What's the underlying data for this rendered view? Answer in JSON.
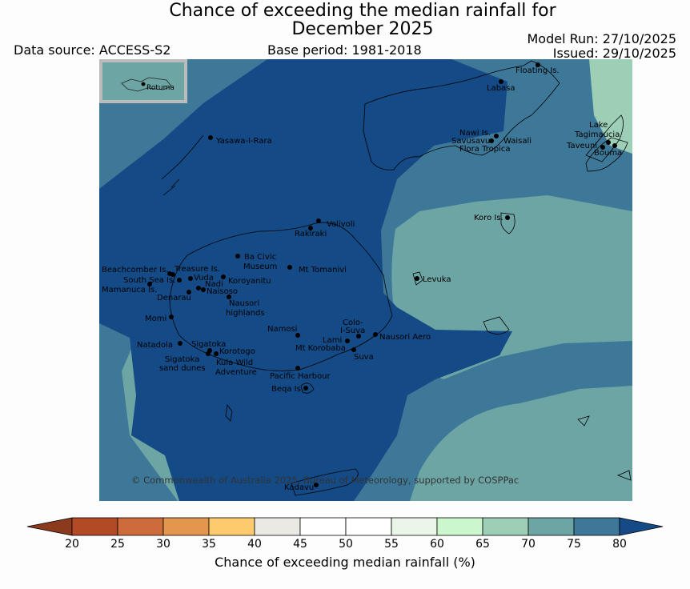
{
  "title_line1": "Chance of exceeding the median rainfall for",
  "title_line2": "December 2025",
  "data_source": "Data source: ACCESS-S2",
  "base_period": "Base period: 1981-2018",
  "model_run": "Model Run: 27/10/2025",
  "issued": "Issued: 29/10/2025",
  "inset_label": "Rotuma",
  "copyright": "© Commonwealth of Australia 2025, Bureau of Meteorology, supported by COSPPac",
  "places": {
    "floating_is": "Floating Is.",
    "labasa": "Labasa",
    "nawi_is": "Nawi Is.",
    "savusavu": "Savusavu",
    "waisali": "Waisali",
    "flora_tropica": "Flora Tropica",
    "lake_tagimaucia_1": "Lake",
    "lake_tagimaucia_2": "Tagimaucia",
    "taveuni": "Taveuni",
    "bouma": "Bouma",
    "yasawa": "Yasawa-I-Rara",
    "koro_is": "Koro Is.",
    "volivoli": "Volivoli",
    "rakiraki": "Rakiraki",
    "ba_civic_1": "Ba Civic",
    "ba_civic_2": "Museum",
    "mt_tomanivi": "Mt Tomanivi",
    "beachcomber": "Beachcomber Is.",
    "treasure": "Treasure Is.",
    "south_sea": "South Sea Is.",
    "vuda": "Vuda",
    "koroyanitu": "Koroyanitu",
    "nadi": "Nadi",
    "mamanuca": "Mamanuca Is.",
    "naisoso": "Naisoso",
    "denarau": "Denarau",
    "nausori_hl_1": "Nausori",
    "nausori_hl_2": "highlands",
    "levuka": "Levuka",
    "momi": "Momi",
    "namosi": "Namosi",
    "colo_1": "Colo-",
    "colo_2": "I-Suva",
    "lami": "Lami",
    "nausori_aero": "Nausori Aero",
    "mt_korobaba": "Mt Korobaba",
    "suva": "Suva",
    "natadola": "Natadola",
    "sigatoka": "Sigatoka",
    "korotogo": "Korotogo",
    "sig_dunes_1": "Sigatoka",
    "sig_dunes_2": "sand dunes",
    "kula_1": "Kula Wild",
    "kula_2": "Adventure",
    "pacific_harbour": "Pacific Harbour",
    "beqa": "Beqa Is.",
    "kadavu": "Kadavu"
  },
  "colorbar": {
    "label": "Chance of exceeding median rainfall (%)",
    "ticks": [
      "20",
      "25",
      "30",
      "35",
      "40",
      "45",
      "50",
      "55",
      "60",
      "65",
      "70",
      "75",
      "80"
    ],
    "under_color": "#8b3a1e",
    "over_color": "#144a86",
    "colors": [
      "#b14a25",
      "#cd6c3a",
      "#e3964e",
      "#fdcb6e",
      "#ebe9e4",
      "#ffffff",
      "#ffffff",
      "#eaf6e8",
      "#ccf7cc",
      "#9dcfb6",
      "#6ca5a3",
      "#3e7898"
    ]
  },
  "zone_colors": {
    "c80": "#144a86",
    "c75": "#3e7898",
    "c70": "#6ca5a3",
    "c65": "#9dcfb6"
  }
}
